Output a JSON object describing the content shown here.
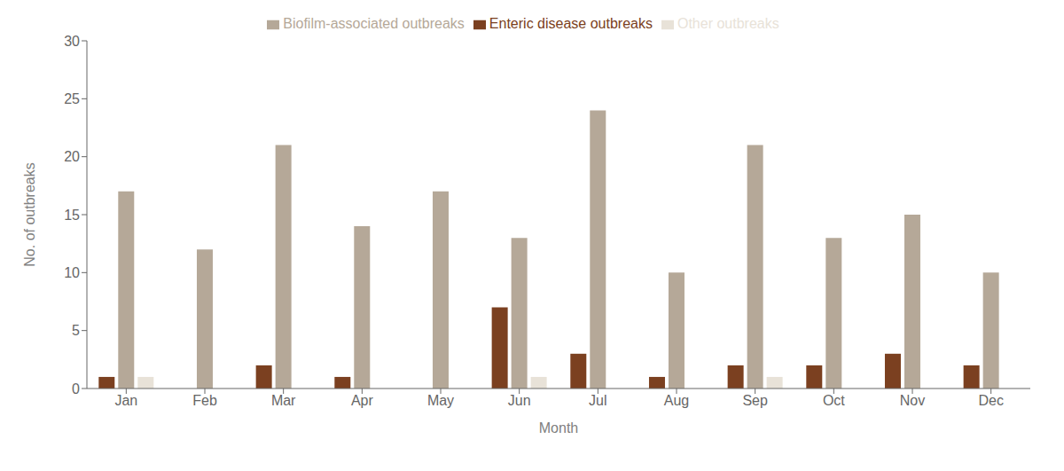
{
  "chart_data": {
    "type": "bar",
    "xlabel": "Month",
    "ylabel": "No. of outbreaks",
    "categories": [
      "Jan",
      "Feb",
      "Mar",
      "Apr",
      "May",
      "Jun",
      "Jul",
      "Aug",
      "Sep",
      "Oct",
      "Nov",
      "Dec"
    ],
    "series": [
      {
        "name": "Enteric disease outbreaks",
        "color": "#7B4020",
        "values": [
          1,
          0,
          2,
          1,
          0,
          7,
          3,
          1,
          2,
          2,
          3,
          2
        ]
      },
      {
        "name": "Biofilm-associated outbreaks",
        "color": "#B5A898",
        "values": [
          17,
          12,
          21,
          14,
          17,
          13,
          24,
          10,
          21,
          13,
          15,
          10
        ]
      },
      {
        "name": "Other outbreaks",
        "color": "#E8E2D8",
        "values": [
          1,
          0,
          0,
          0,
          0,
          1,
          0,
          0,
          1,
          0,
          0,
          0
        ]
      }
    ],
    "ylim": [
      0,
      30
    ],
    "yticks": [
      0,
      5,
      10,
      15,
      20,
      25,
      30
    ],
    "grid": false,
    "legend": "top"
  }
}
